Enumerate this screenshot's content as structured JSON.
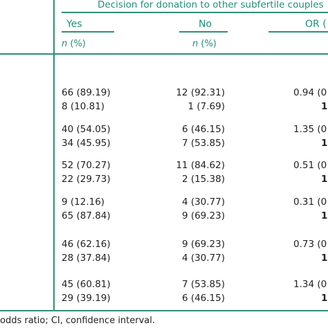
{
  "header": {
    "title": "Decision for donation to other subfertile couples",
    "col_yes": "Yes",
    "col_no": "No",
    "col_or": "OR (",
    "sub_yes_n": "n",
    "sub_yes_pct": " (%)",
    "sub_no_n": "n",
    "sub_no_pct": " (%)"
  },
  "rows": [
    {
      "yes": "66 (89.19)",
      "no": "12 (92.31)",
      "or": "0.94 (0"
    },
    {
      "yes": "8 (10.81)",
      "no": "1 (7.69)",
      "or": "1"
    },
    {
      "yes": "40 (54.05)",
      "no": "6 (46.15)",
      "or": "1.35 (0"
    },
    {
      "yes": "34 (45.95)",
      "no": "7 (53.85)",
      "or": "1"
    },
    {
      "yes": "52 (70.27)",
      "no": "11 (84.62)",
      "or": "0.51 (0"
    },
    {
      "yes": "22 (29.73)",
      "no": "2 (15.38)",
      "or": "1"
    },
    {
      "yes": "9 (12.16)",
      "no": "4 (30.77)",
      "or": "0.31 (0"
    },
    {
      "yes": "65 (87.84)",
      "no": "9 (69.23)",
      "or": "1"
    },
    {
      "yes": "46 (62.16)",
      "no": "9 (69.23)",
      "or": "0.73 (0"
    },
    {
      "yes": "28 (37.84)",
      "no": "4 (30.77)",
      "or": "1"
    },
    {
      "yes": "45 (60.81)",
      "no": "7 (53.85)",
      "or": "1.34 (0"
    },
    {
      "yes": "29 (39.19)",
      "no": "6 (46.15)",
      "or": "1"
    }
  ],
  "footer": {
    "note": "odds ratio; CI, confidence interval."
  }
}
